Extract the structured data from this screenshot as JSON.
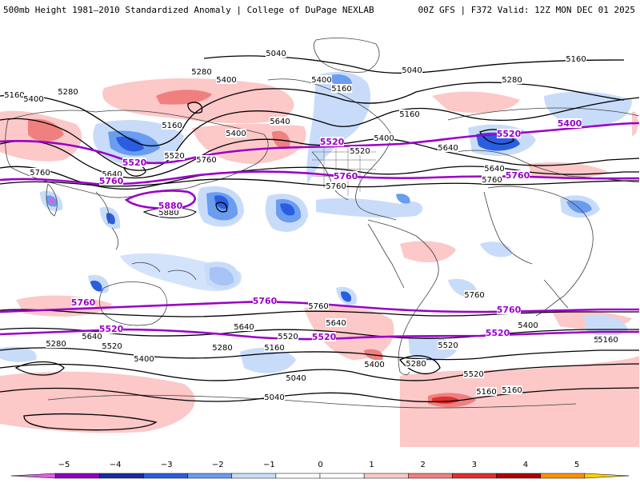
{
  "header": {
    "left_title": "500mb Height 1981–2010 Standardized Anomaly | College of DuPage NEXLAB",
    "right_title": "00Z GFS | F372 Valid: 12Z MON DEC 01 2025"
  },
  "colorbar": {
    "ticks": [
      "−5",
      "−4",
      "−3",
      "−2",
      "−1",
      "0",
      "1",
      "2",
      "3",
      "4",
      "5"
    ],
    "colors": [
      "#e060e0",
      "#9000c0",
      "#1a2aa0",
      "#2a5ee0",
      "#6a9cf0",
      "#c8dcfa",
      "#ffffff",
      "#ffffff",
      "#fcc8c8",
      "#f08080",
      "#e03030",
      "#b00000",
      "#ff9000",
      "#ffd000"
    ]
  },
  "contour_labels": [
    {
      "text": "5040"
    },
    {
      "text": "5160"
    },
    {
      "text": "5280"
    },
    {
      "text": "5400"
    },
    {
      "text": "5160"
    },
    {
      "text": "5280"
    },
    {
      "text": "5040"
    },
    {
      "text": "5160"
    },
    {
      "text": "5400"
    },
    {
      "text": "5160"
    },
    {
      "text": "5400"
    },
    {
      "text": "5640"
    },
    {
      "text": "5280"
    },
    {
      "text": "5400"
    },
    {
      "text": "5640"
    },
    {
      "text": "5160"
    },
    {
      "text": "5400"
    },
    {
      "text": "5520"
    },
    {
      "text": "5640"
    },
    {
      "text": "5760"
    },
    {
      "text": "5520"
    },
    {
      "text": "5760"
    },
    {
      "text": "5640"
    },
    {
      "text": "5760"
    },
    {
      "text": "5880"
    },
    {
      "text": "5760"
    },
    {
      "text": "5760"
    },
    {
      "text": "5640"
    },
    {
      "text": "5520"
    },
    {
      "text": "5280"
    },
    {
      "text": "5400"
    },
    {
      "text": "5520"
    },
    {
      "text": "5640"
    },
    {
      "text": "5160"
    },
    {
      "text": "5280"
    },
    {
      "text": "5040"
    },
    {
      "text": "5040"
    },
    {
      "text": "5520"
    },
    {
      "text": "5400"
    },
    {
      "text": "5280"
    },
    {
      "text": "5160"
    },
    {
      "text": "5640"
    },
    {
      "text": "5520"
    },
    {
      "text": "5400"
    },
    {
      "text": "5160"
    },
    {
      "text": "5160"
    },
    {
      "text": "5160"
    },
    {
      "text": "5760"
    }
  ],
  "purple_labels": [
    {
      "text": "5520"
    },
    {
      "text": "5520"
    },
    {
      "text": "5520"
    },
    {
      "text": "5400"
    },
    {
      "text": "5760"
    },
    {
      "text": "5760"
    },
    {
      "text": "5760"
    },
    {
      "text": "5880"
    },
    {
      "text": "5760"
    },
    {
      "text": "5760"
    },
    {
      "text": "5760"
    },
    {
      "text": "5520"
    },
    {
      "text": "5520"
    },
    {
      "text": "5520"
    }
  ]
}
